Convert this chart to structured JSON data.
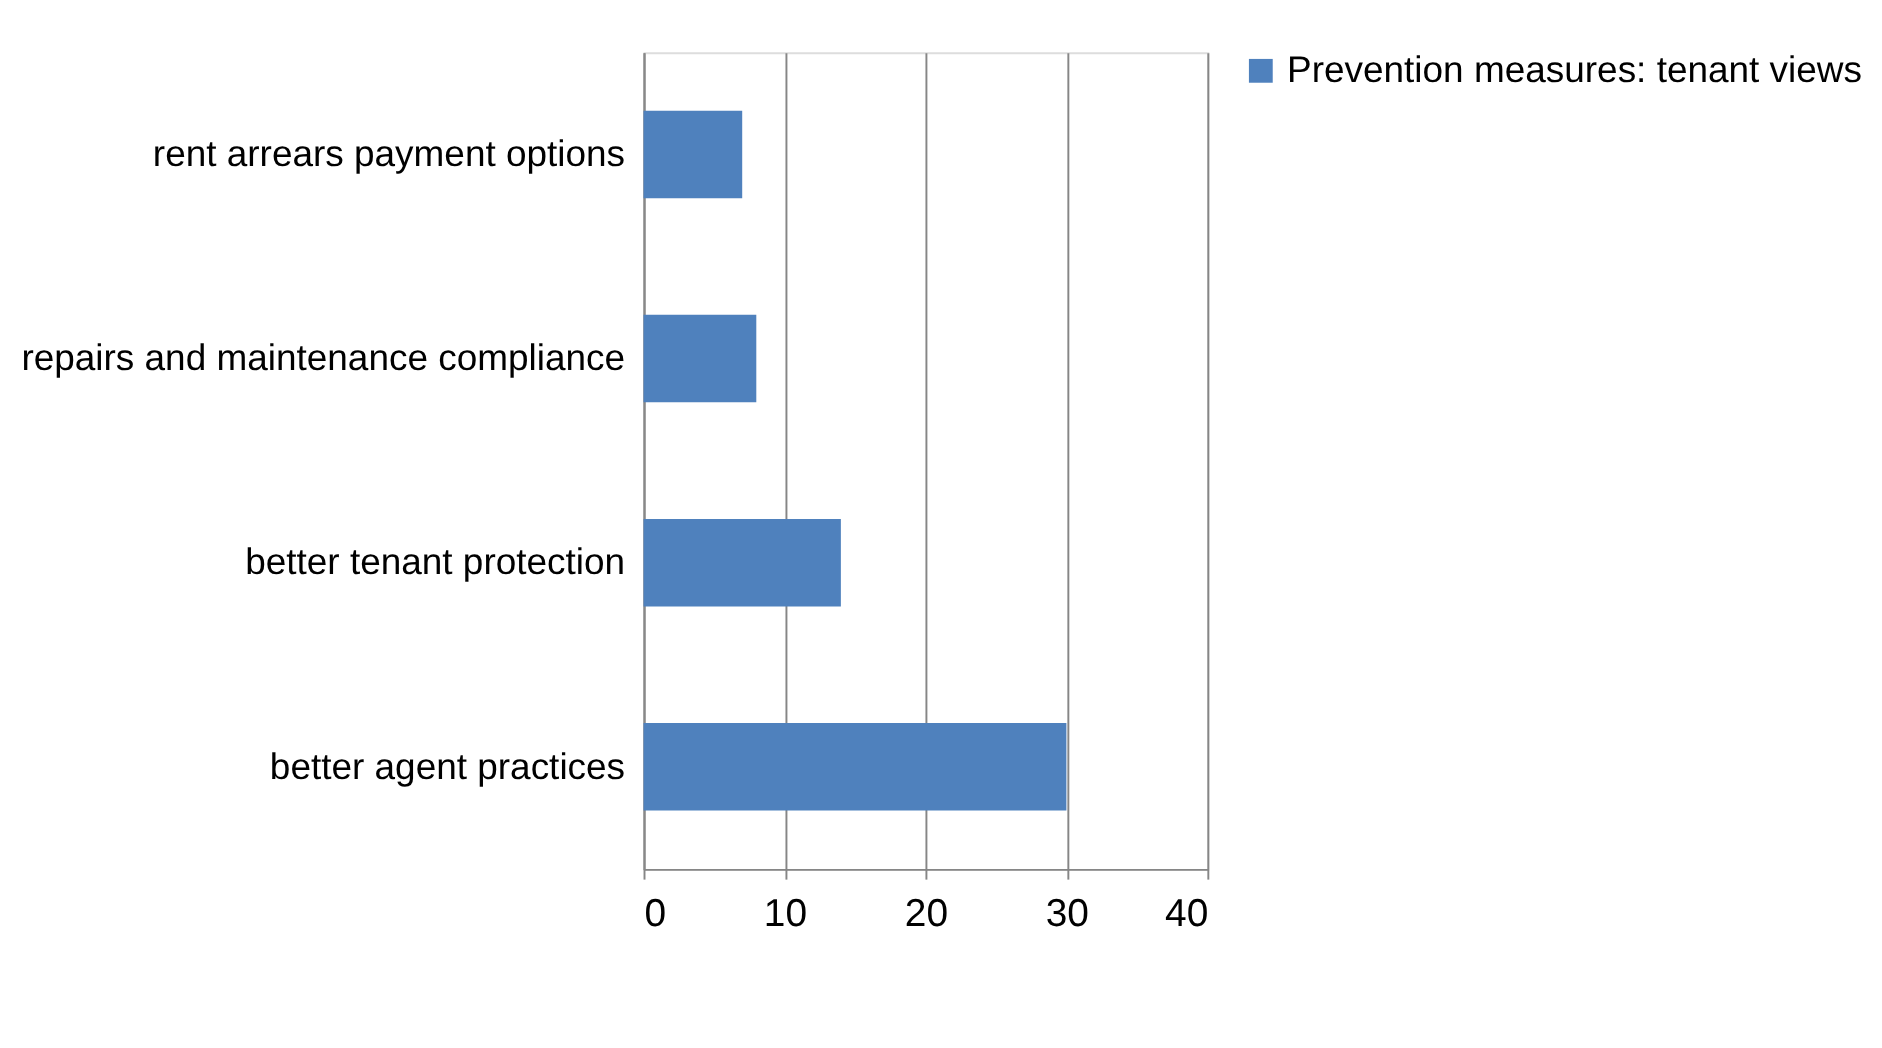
{
  "chart_data": {
    "type": "bar",
    "orientation": "horizontal",
    "categories": [
      "rent arrears payment options",
      "repairs and maintenance compliance",
      "better tenant protection",
      "better agent practices"
    ],
    "series": [
      {
        "name": "Prevention measures: tenant views",
        "color": "#4f81bd",
        "values": [
          7,
          8,
          14,
          30
        ]
      }
    ],
    "xlim": [
      0,
      40
    ],
    "xticks": [
      0,
      10,
      20,
      30,
      40
    ],
    "grid": "x",
    "legend": "right"
  }
}
